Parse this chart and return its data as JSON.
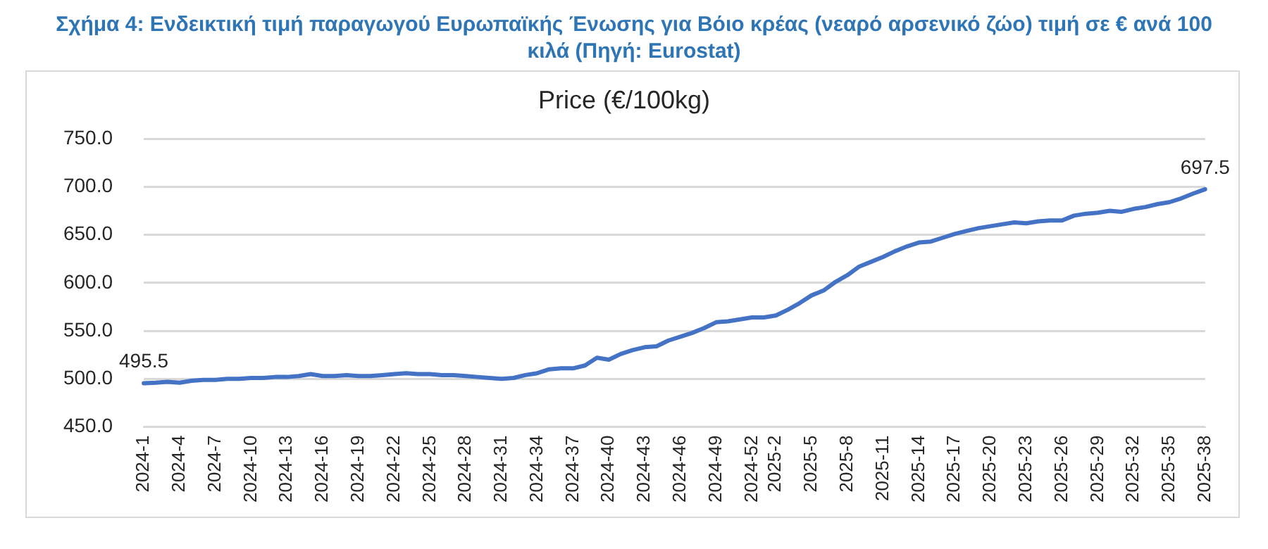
{
  "chart_data": {
    "type": "line",
    "title": "Σχήμα 4: Ενδεικτική τιμή παραγωγού Ευρωπαϊκής Ένωσης για Βόιο κρέας (νεαρό αρσενικό ζώο) τιμή σε € ανά 100 κιλά (Πηγή: Eurostat)",
    "subtitle": "Price (€/100kg)",
    "categories": [
      "2024-1",
      null,
      null,
      "2024-4",
      null,
      null,
      "2024-7",
      null,
      null,
      "2024-10",
      null,
      null,
      "2024-13",
      null,
      null,
      "2024-16",
      null,
      null,
      "2024-19",
      null,
      null,
      "2024-22",
      null,
      null,
      "2024-25",
      null,
      null,
      "2024-28",
      null,
      null,
      "2024-31",
      null,
      null,
      "2024-34",
      null,
      null,
      "2024-37",
      null,
      null,
      "2024-40",
      null,
      null,
      "2024-43",
      null,
      null,
      "2024-46",
      null,
      null,
      "2024-49",
      null,
      null,
      "2024-52",
      null,
      "2025-2",
      null,
      null,
      "2025-5",
      null,
      null,
      "2025-8",
      null,
      null,
      "2025-11",
      null,
      null,
      "2025-14",
      null,
      null,
      "2025-17",
      null,
      null,
      "2025-20",
      null,
      null,
      "2025-23",
      null,
      null,
      "2025-26",
      null,
      null,
      "2025-29",
      null,
      null,
      "2025-32",
      null,
      null,
      "2025-35",
      null,
      null,
      "2025-38"
    ],
    "series": [
      {
        "color": "#4472c4",
        "values": [
          495.5,
          496,
          497,
          496,
          498,
          499,
          499,
          500,
          500,
          501,
          501,
          502,
          502,
          503,
          505,
          503,
          503,
          504,
          503,
          503,
          504,
          505,
          506,
          505,
          505,
          504,
          504,
          503,
          502,
          501,
          500,
          501,
          504,
          506,
          510,
          511,
          511,
          514,
          522,
          520,
          526,
          530,
          533,
          534,
          540,
          544,
          548,
          553,
          559,
          560,
          562,
          564,
          564,
          566,
          572,
          579,
          587,
          592,
          601,
          608,
          617,
          622,
          627,
          633,
          638,
          642,
          643,
          647,
          651,
          654,
          657,
          659,
          661,
          663,
          662,
          664,
          665,
          665,
          670,
          672,
          673,
          675,
          674,
          677,
          679,
          682,
          684,
          688,
          693,
          697.5
        ],
        "value_labels": [
          "495.5",
          null,
          null,
          null,
          null,
          null,
          null,
          null,
          null,
          null,
          null,
          null,
          null,
          null,
          null,
          null,
          null,
          null,
          null,
          null,
          null,
          null,
          null,
          null,
          null,
          null,
          null,
          null,
          null,
          null,
          null,
          null,
          null,
          null,
          null,
          null,
          null,
          null,
          null,
          null,
          null,
          null,
          null,
          null,
          null,
          null,
          null,
          null,
          null,
          null,
          null,
          null,
          null,
          null,
          null,
          null,
          null,
          null,
          null,
          null,
          null,
          null,
          null,
          null,
          null,
          null,
          null,
          null,
          null,
          null,
          null,
          null,
          null,
          null,
          null,
          null,
          null,
          null,
          null,
          null,
          null,
          null,
          null,
          null,
          null,
          null,
          null,
          null,
          null,
          "697.5"
        ]
      }
    ],
    "ylim": [
      450,
      750
    ],
    "yticks": [
      {
        "value": 450,
        "label": "450.0"
      },
      {
        "value": 500,
        "label": "500.0"
      },
      {
        "value": 550,
        "label": "550.0"
      },
      {
        "value": 600,
        "label": "600.0"
      },
      {
        "value": 650,
        "label": "650.0"
      },
      {
        "value": 700,
        "label": "700.0"
      },
      {
        "value": 750,
        "label": "750.0"
      }
    ],
    "grid": "y",
    "legend": false,
    "marker": "none",
    "line_style": "solid"
  }
}
